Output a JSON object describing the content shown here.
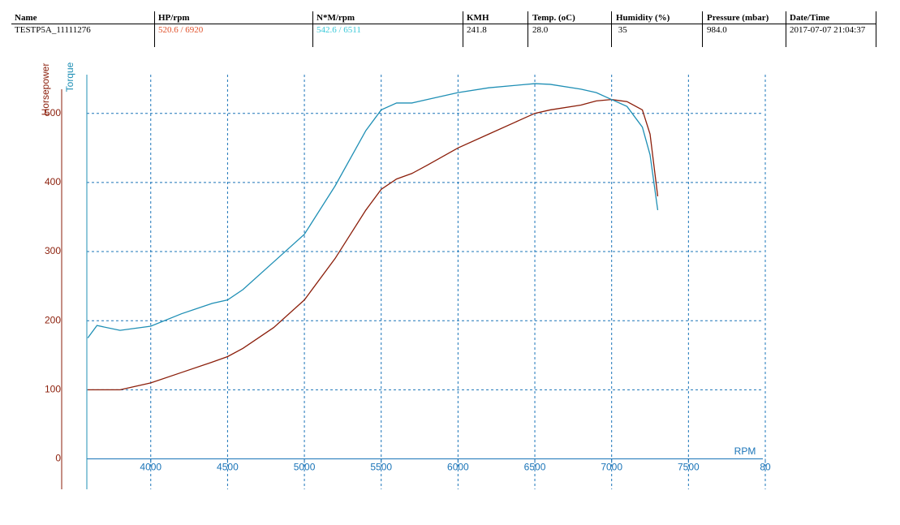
{
  "table": {
    "columns": [
      "Name",
      "HP/rpm",
      "N*M/rpm",
      "KMH",
      "Temp. (oC)",
      "Humidity (%)",
      "Pressure (mbar)",
      "Date/Time"
    ],
    "rows": [
      [
        "TESTP5A_11111276",
        "520.6 / 6920",
        "542.6 / 6511",
        "241.8",
        "28.0",
        " 35",
        "984.0",
        "2017-07-07 21:04:37"
      ]
    ]
  },
  "chart_data": {
    "type": "line",
    "x_label": "RPM",
    "y_label": "Horsepower",
    "y2_label": "Torque",
    "x": [
      3590,
      3650,
      3800,
      4000,
      4200,
      4400,
      4500,
      4600,
      4800,
      5000,
      5200,
      5400,
      5500,
      5600,
      5700,
      5800,
      6000,
      6200,
      6400,
      6500,
      6600,
      6800,
      6900,
      7000,
      7100,
      7200,
      7250,
      7300
    ],
    "series": [
      {
        "name": "Horsepower",
        "color": "#8b1e0a",
        "values": [
          100,
          100,
          100,
          110,
          125,
          140,
          148,
          160,
          190,
          230,
          290,
          360,
          390,
          405,
          413,
          425,
          450,
          470,
          490,
          500,
          505,
          512,
          518,
          520,
          517,
          505,
          470,
          380
        ]
      },
      {
        "name": "Torque",
        "color": "#1f8fb5",
        "values": [
          175,
          193,
          186,
          192,
          210,
          225,
          230,
          245,
          285,
          325,
          395,
          475,
          505,
          515,
          515,
          520,
          530,
          537,
          541,
          543,
          542,
          535,
          530,
          520,
          510,
          480,
          440,
          360
        ]
      }
    ],
    "xlim": [
      3584,
      8000
    ],
    "xticks": [
      4000,
      4500,
      5000,
      5500,
      6000,
      6500,
      7000,
      7500,
      {
        "value": 8000,
        "label": "80"
      }
    ],
    "ylim": [
      -44,
      556
    ],
    "yticks": [
      0,
      100,
      200,
      300,
      400,
      500
    ],
    "grid": true,
    "grid_color": "#1a74b8",
    "y_axis_color": "#8b1e0a",
    "y2_axis_color": "#1f8fb5"
  }
}
